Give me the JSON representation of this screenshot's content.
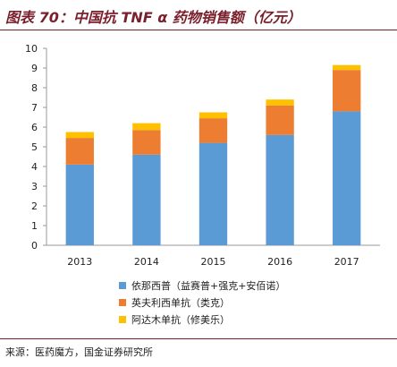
{
  "header": {
    "title": "图表 70：中国抗 TNF α 药物销售额（亿元）"
  },
  "footer": {
    "source": "来源：医药魔方，国金证券研究所"
  },
  "chart_data": {
    "type": "bar",
    "stacked": true,
    "categories": [
      "2013",
      "2014",
      "2015",
      "2016",
      "2017"
    ],
    "series": [
      {
        "name": "依那西普（益赛普+强克+安佰诺）",
        "color": "#5b9bd5",
        "values": [
          4.1,
          4.6,
          5.2,
          5.6,
          6.8
        ]
      },
      {
        "name": "英夫利西单抗（类克）",
        "color": "#ed7d31",
        "values": [
          1.35,
          1.25,
          1.25,
          1.5,
          2.1
        ]
      },
      {
        "name": "阿达木单抗（修美乐）",
        "color": "#ffc000",
        "values": [
          0.3,
          0.35,
          0.3,
          0.3,
          0.25
        ]
      }
    ],
    "ylim": [
      0,
      10
    ],
    "yticks": [
      0,
      1,
      2,
      3,
      4,
      5,
      6,
      7,
      8,
      9,
      10
    ],
    "grid": false,
    "legend": "bottom"
  }
}
